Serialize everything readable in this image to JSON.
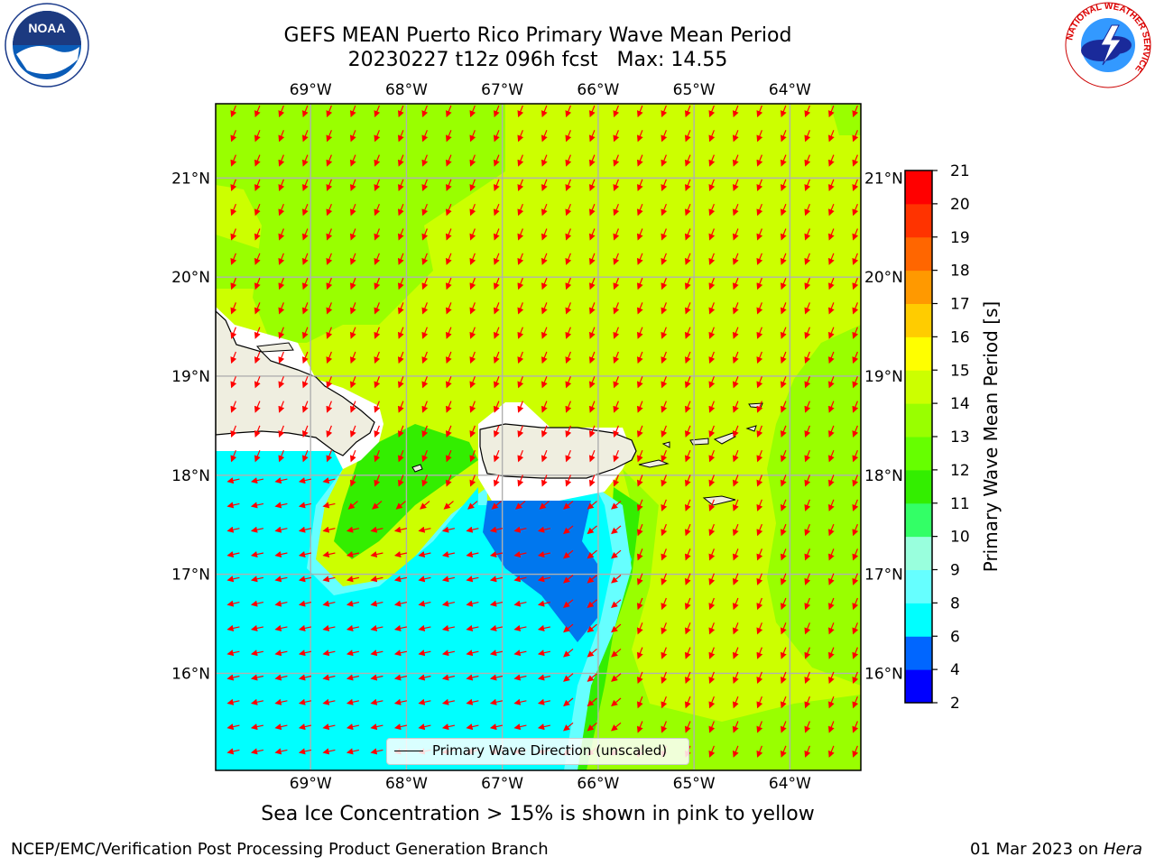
{
  "title": {
    "line1": "GEFS MEAN Puerto Rico Primary Wave Mean Period",
    "line2": "20230227 t12z 096h fcst   Max: 14.55"
  },
  "logos": {
    "noaa_text": "NOAA",
    "nws_ring": "NATIONAL WEATHER SERVICE"
  },
  "map": {
    "lon_labels": [
      "69°W",
      "68°W",
      "67°W",
      "66°W",
      "65°W",
      "64°W"
    ],
    "lat_labels": [
      "21°N",
      "20°N",
      "19°N",
      "18°N",
      "17°N",
      "16°N"
    ],
    "lon_values": [
      -69,
      -68,
      -67,
      -66,
      -65,
      -64
    ],
    "lat_values": [
      21,
      20,
      19,
      18,
      17,
      16
    ],
    "lon_range": [
      -69.99,
      -63.26
    ],
    "lat_range": [
      15.02,
      21.75
    ],
    "legend_label": "Primary Wave Direction (unscaled)"
  },
  "colorbar": {
    "label": "Primary Wave Mean Period [s]",
    "ticks": [
      "2",
      "4",
      "6",
      "8",
      "9",
      "10",
      "11",
      "12",
      "13",
      "14",
      "15",
      "16",
      "17",
      "18",
      "19",
      "20",
      "21"
    ],
    "colors": [
      "#0000ff",
      "#0066ff",
      "#00ffff",
      "#66ffff",
      "#99ffdd",
      "#33ff66",
      "#33ee00",
      "#66ff00",
      "#99ff00",
      "#ccff00",
      "#ffff00",
      "#ffcc00",
      "#ff9900",
      "#ff6600",
      "#ff3300",
      "#ff0000"
    ]
  },
  "note": "Sea Ice Concentration > 15% is shown in pink to yellow",
  "footer": {
    "left": "NCEP/EMC/Verification Post Processing Product Generation Branch",
    "right_date": "01 Mar 2023 on ",
    "right_host": "Hera"
  }
}
